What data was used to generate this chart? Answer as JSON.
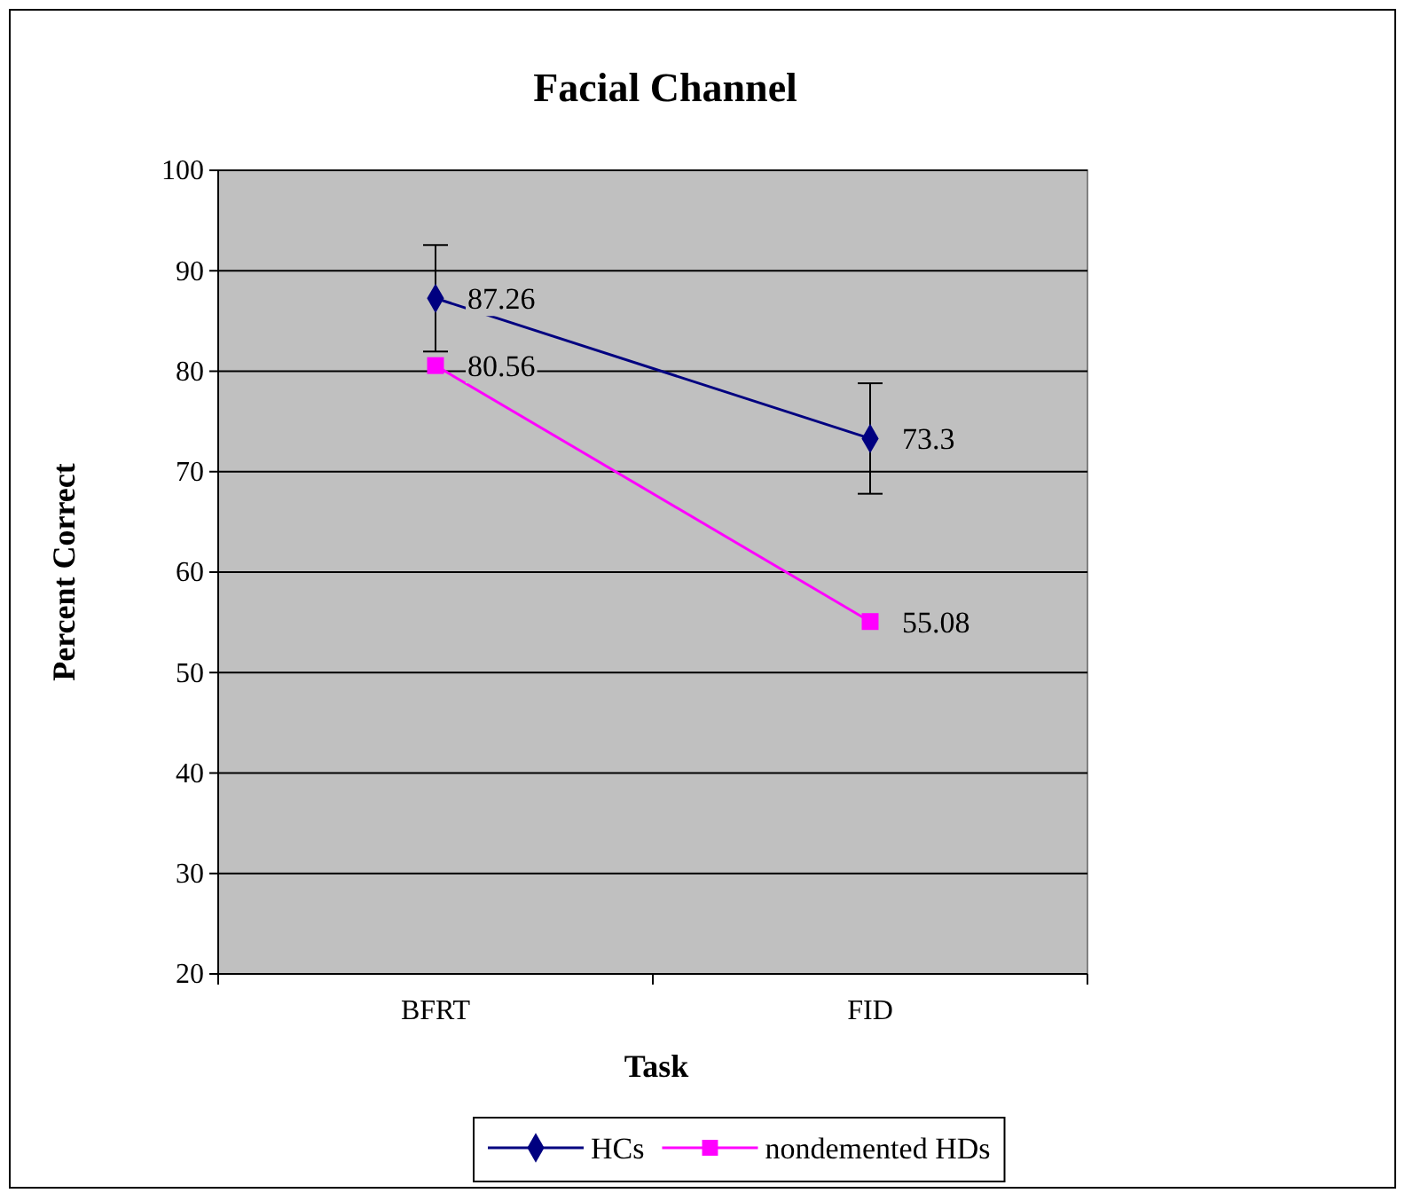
{
  "chart_data": {
    "type": "line",
    "title": "Facial Channel",
    "xlabel": "Task",
    "ylabel": "Percent Correct",
    "categories": [
      "BFRT",
      "FID"
    ],
    "series": [
      {
        "name": "HCs",
        "color": "#000080",
        "values": [
          87.26,
          73.3
        ],
        "errors": [
          5.3,
          5.5
        ],
        "marker": "diamond"
      },
      {
        "name": "nondemented HDs",
        "color": "#ff00ff",
        "values": [
          80.56,
          55.08
        ],
        "marker": "square"
      }
    ],
    "ylim": [
      20,
      100
    ],
    "yticks": [
      20,
      30,
      40,
      50,
      60,
      70,
      80,
      90,
      100
    ],
    "grid": "y",
    "legend": "bottom",
    "data_labels": true,
    "line_style": "solid"
  }
}
